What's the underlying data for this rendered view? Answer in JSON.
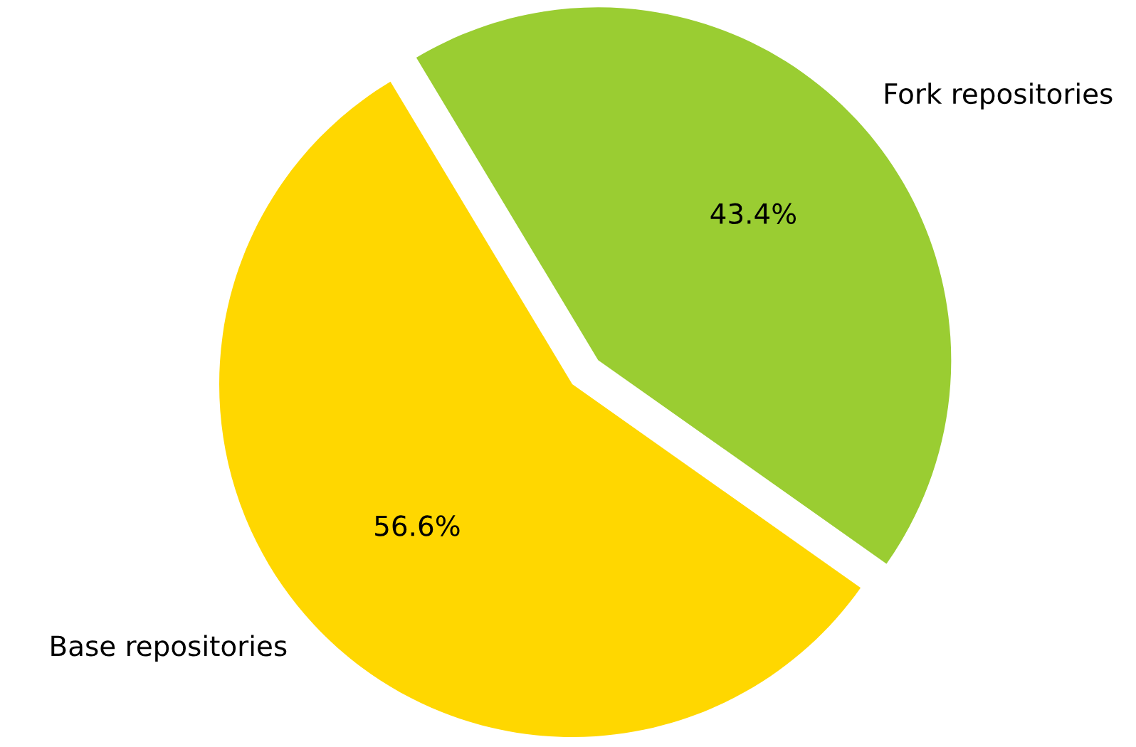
{
  "chart_data": {
    "type": "pie",
    "categories": [
      "Base repositories",
      "Fork repositories"
    ],
    "values": [
      56.6,
      43.4
    ],
    "colors": [
      "#ffd700",
      "#9acd32"
    ],
    "value_labels": [
      "56.6%",
      "43.4%"
    ]
  }
}
